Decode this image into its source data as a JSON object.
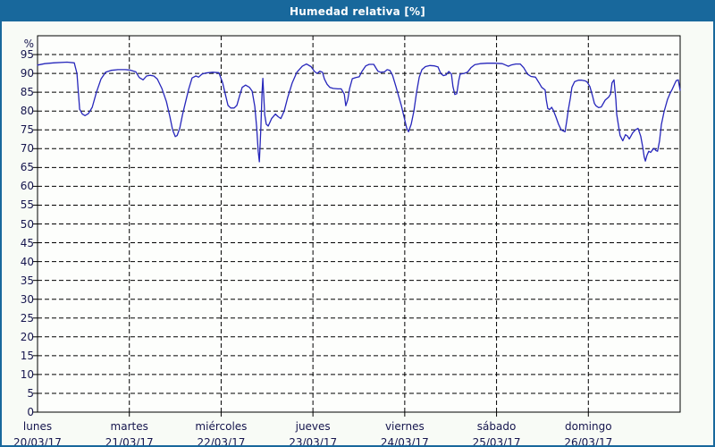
{
  "window": {
    "title": "Humedad relativa [%]",
    "colors": {
      "title_bar": "#18689c",
      "border": "#18689c",
      "background": "#f8fbf6",
      "plot_background": "#fdfefc",
      "grid": "#000000",
      "line": "#2626bb",
      "label_text": "#15154d",
      "title_text": "#ffffff"
    }
  },
  "chart_data": {
    "type": "line",
    "title": "Humedad relativa [%]",
    "grid": "dashed",
    "legend": "none",
    "y_axis": {
      "unit": "%",
      "min": 0,
      "max": 100,
      "tick_step": 5,
      "ticks": [
        0,
        5,
        10,
        15,
        20,
        25,
        30,
        35,
        40,
        45,
        50,
        55,
        60,
        65,
        70,
        75,
        80,
        85,
        90,
        95
      ]
    },
    "x_axis": {
      "hours_total": 168,
      "days": [
        {
          "name": "lunes",
          "date": "20/03/17"
        },
        {
          "name": "martes",
          "date": "21/03/17"
        },
        {
          "name": "miércoles",
          "date": "22/03/17"
        },
        {
          "name": "jueves",
          "date": "23/03/17"
        },
        {
          "name": "viernes",
          "date": "24/03/17"
        },
        {
          "name": "sábado",
          "date": "25/03/17"
        },
        {
          "name": "domingo",
          "date": "26/03/17"
        }
      ]
    },
    "series": [
      {
        "name": "Humedad relativa",
        "unit": "%",
        "points": [
          [
            0,
            92.2
          ],
          [
            1.9,
            92.6
          ],
          [
            4.2,
            92.8
          ],
          [
            7.7,
            93
          ],
          [
            9.6,
            92.8
          ],
          [
            10.3,
            90
          ],
          [
            11,
            80.5
          ],
          [
            11.7,
            79.2
          ],
          [
            12.4,
            78.8
          ],
          [
            13.3,
            79.3
          ],
          [
            14.3,
            81
          ],
          [
            15.4,
            85
          ],
          [
            16.6,
            88.5
          ],
          [
            17.8,
            90.3
          ],
          [
            19.2,
            90.8
          ],
          [
            21,
            91
          ],
          [
            22.9,
            91
          ],
          [
            24.1,
            90.9
          ],
          [
            25.7,
            90.4
          ],
          [
            26.6,
            88.9
          ],
          [
            27.6,
            88.3
          ],
          [
            28.5,
            89.3
          ],
          [
            29.4,
            89.5
          ],
          [
            30.4,
            89.3
          ],
          [
            31.3,
            88.5
          ],
          [
            32.5,
            86
          ],
          [
            33.7,
            82.5
          ],
          [
            34.6,
            78.5
          ],
          [
            35.3,
            75
          ],
          [
            36,
            73.2
          ],
          [
            36.5,
            73.5
          ],
          [
            37.2,
            75.5
          ],
          [
            37.9,
            79
          ],
          [
            38.6,
            82
          ],
          [
            39.5,
            85.8
          ],
          [
            40.4,
            88.8
          ],
          [
            41.4,
            89.3
          ],
          [
            42.1,
            89
          ],
          [
            43,
            89.8
          ],
          [
            43.9,
            90.1
          ],
          [
            45.8,
            90.3
          ],
          [
            47.4,
            90.2
          ],
          [
            48.4,
            87.5
          ],
          [
            49.1,
            84.5
          ],
          [
            49.8,
            81.5
          ],
          [
            50.5,
            80.8
          ],
          [
            51.4,
            80.8
          ],
          [
            52.1,
            81.5
          ],
          [
            52.8,
            84
          ],
          [
            53.5,
            86.3
          ],
          [
            54.4,
            86.9
          ],
          [
            55.4,
            86.3
          ],
          [
            56.1,
            85.3
          ],
          [
            56.8,
            81.2
          ],
          [
            57.3,
            75.6
          ],
          [
            57.7,
            69.3
          ],
          [
            58,
            66.5
          ],
          [
            58.4,
            75.6
          ],
          [
            58.7,
            85
          ],
          [
            58.9,
            88.7
          ],
          [
            59.4,
            79
          ],
          [
            59.8,
            76.5
          ],
          [
            60.3,
            76
          ],
          [
            61.2,
            78
          ],
          [
            62.2,
            79.2
          ],
          [
            62.9,
            78.5
          ],
          [
            63.6,
            78
          ],
          [
            64.5,
            80
          ],
          [
            65.4,
            83.6
          ],
          [
            66.6,
            87.5
          ],
          [
            67.8,
            90.3
          ],
          [
            69.2,
            91.9
          ],
          [
            70.3,
            92.5
          ],
          [
            71.5,
            91.8
          ],
          [
            72.4,
            90.5
          ],
          [
            73.1,
            90
          ],
          [
            73.8,
            90.6
          ],
          [
            74.5,
            90.3
          ],
          [
            75,
            88.5
          ],
          [
            75.7,
            87.1
          ],
          [
            76.4,
            86.3
          ],
          [
            77.3,
            86
          ],
          [
            78.5,
            85.9
          ],
          [
            79.4,
            85.9
          ],
          [
            80.2,
            84.5
          ],
          [
            80.6,
            81.4
          ],
          [
            81.1,
            83
          ],
          [
            81.6,
            86
          ],
          [
            82.3,
            88.6
          ],
          [
            83.2,
            88.9
          ],
          [
            84.1,
            89.1
          ],
          [
            84.8,
            90.5
          ],
          [
            85.8,
            92
          ],
          [
            86.7,
            92.4
          ],
          [
            87.9,
            92.4
          ],
          [
            88.6,
            91.2
          ],
          [
            89,
            90.6
          ],
          [
            89.7,
            90.3
          ],
          [
            90.7,
            90.4
          ],
          [
            91.4,
            91
          ],
          [
            92.1,
            90.8
          ],
          [
            92.8,
            89.5
          ],
          [
            93.7,
            86.5
          ],
          [
            94.4,
            84
          ],
          [
            95.1,
            81.5
          ],
          [
            95.8,
            78.5
          ],
          [
            96.5,
            75.5
          ],
          [
            97,
            74.5
          ],
          [
            97.7,
            76.5
          ],
          [
            98.4,
            80
          ],
          [
            99.1,
            85
          ],
          [
            99.8,
            89
          ],
          [
            100.5,
            91
          ],
          [
            101.4,
            91.8
          ],
          [
            102.6,
            92.1
          ],
          [
            103.8,
            92
          ],
          [
            104.7,
            91.7
          ],
          [
            105.4,
            90
          ],
          [
            106.1,
            89.4
          ],
          [
            106.8,
            89.6
          ],
          [
            107.5,
            90.5
          ],
          [
            108.2,
            89.8
          ],
          [
            108.6,
            86.5
          ],
          [
            109.1,
            84.4
          ],
          [
            109.6,
            84.6
          ],
          [
            110.1,
            88
          ],
          [
            110.5,
            89.8
          ],
          [
            111.5,
            90
          ],
          [
            112.4,
            90.3
          ],
          [
            113.3,
            91.5
          ],
          [
            114.3,
            92.3
          ],
          [
            115.7,
            92.6
          ],
          [
            117.5,
            92.7
          ],
          [
            119.6,
            92.7
          ],
          [
            121.5,
            92.6
          ],
          [
            122.4,
            92.2
          ],
          [
            123.1,
            91.9
          ],
          [
            123.8,
            92.2
          ],
          [
            125,
            92.5
          ],
          [
            126.2,
            92.5
          ],
          [
            127.1,
            91.5
          ],
          [
            128.1,
            89.8
          ],
          [
            129,
            89.2
          ],
          [
            130.2,
            89
          ],
          [
            131.1,
            87.5
          ],
          [
            131.8,
            86.3
          ],
          [
            132.7,
            85.6
          ],
          [
            133,
            83
          ],
          [
            133.4,
            80.7
          ],
          [
            133.9,
            80.4
          ],
          [
            134.4,
            81
          ],
          [
            134.8,
            80.3
          ],
          [
            135.5,
            78.5
          ],
          [
            136.2,
            76.5
          ],
          [
            136.9,
            75
          ],
          [
            137.9,
            74.5
          ],
          [
            138.3,
            77
          ],
          [
            138.8,
            80.5
          ],
          [
            139.3,
            83.5
          ],
          [
            139.7,
            86.3
          ],
          [
            140.4,
            87.8
          ],
          [
            141.4,
            88.2
          ],
          [
            142.3,
            88.2
          ],
          [
            143.2,
            88
          ],
          [
            143.7,
            87.7
          ],
          [
            144.4,
            86.5
          ],
          [
            145.1,
            84
          ],
          [
            145.6,
            82
          ],
          [
            146,
            81.4
          ],
          [
            146.7,
            80.9
          ],
          [
            147.4,
            81.1
          ],
          [
            148.4,
            82.9
          ],
          [
            149.3,
            83.7
          ],
          [
            149.8,
            84.5
          ],
          [
            150.2,
            87.5
          ],
          [
            150.7,
            88.3
          ],
          [
            151.2,
            83
          ],
          [
            151.4,
            79.2
          ],
          [
            151.9,
            76
          ],
          [
            152.3,
            73.5
          ],
          [
            153,
            72.1
          ],
          [
            153.7,
            73.7
          ],
          [
            154.2,
            73.4
          ],
          [
            154.7,
            72.6
          ],
          [
            155.1,
            73.3
          ],
          [
            155.6,
            74.2
          ],
          [
            156.3,
            75
          ],
          [
            157,
            75.4
          ],
          [
            157.7,
            73.3
          ],
          [
            158.2,
            70.5
          ],
          [
            158.6,
            67.8
          ],
          [
            158.9,
            66.7
          ],
          [
            159.3,
            68.2
          ],
          [
            159.8,
            69.3
          ],
          [
            160.3,
            69
          ],
          [
            160.7,
            69.6
          ],
          [
            161.2,
            70.1
          ],
          [
            161.7,
            69.5
          ],
          [
            162.1,
            69.3
          ],
          [
            162.6,
            72
          ],
          [
            163.1,
            76.4
          ],
          [
            163.8,
            79.8
          ],
          [
            164.7,
            83.1
          ],
          [
            165.4,
            84.8
          ],
          [
            165.9,
            85.7
          ],
          [
            166.6,
            87.3
          ],
          [
            167,
            88.1
          ],
          [
            167.5,
            88.3
          ],
          [
            168,
            85.5
          ]
        ]
      }
    ]
  }
}
